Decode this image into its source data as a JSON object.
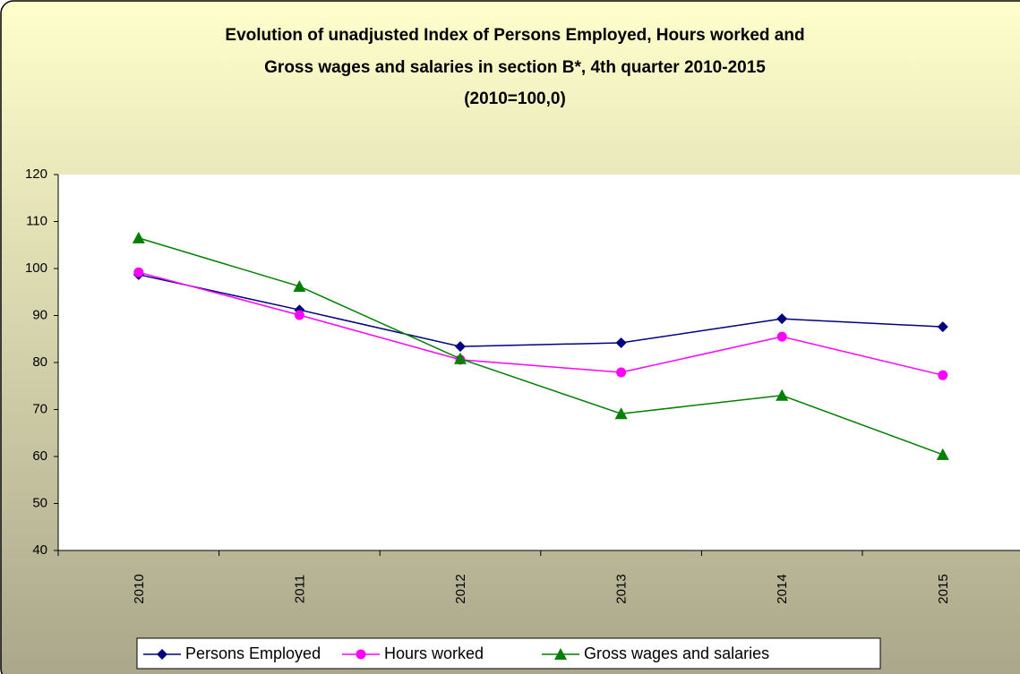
{
  "chart_data": {
    "type": "line",
    "title": [
      "Evolution of unadjusted Index of Persons Employed, Hours worked and",
      "Gross wages and salaries in section B*, 4th quarter 2010-2015",
      "(2010=100,0)"
    ],
    "categories": [
      "2010",
      "2011",
      "2012",
      "2013",
      "2014",
      "2015"
    ],
    "series": [
      {
        "name": "Persons Employed",
        "color": "#000080",
        "marker": "diamond",
        "values": [
          98.7,
          91.2,
          83.4,
          84.2,
          89.3,
          87.6
        ]
      },
      {
        "name": "Hours worked",
        "color": "#ff00ff",
        "marker": "circle",
        "values": [
          99.2,
          90.1,
          80.6,
          77.9,
          85.5,
          77.3
        ]
      },
      {
        "name": "Gross wages and salaries",
        "color": "#008000",
        "marker": "triangle",
        "values": [
          106.5,
          96.2,
          80.8,
          69.1,
          73.0,
          60.4
        ]
      }
    ],
    "ylim": [
      40,
      120
    ],
    "yticks": [
      40,
      50,
      60,
      70,
      80,
      90,
      100,
      110,
      120
    ],
    "grid": false,
    "legend": "bottom"
  }
}
